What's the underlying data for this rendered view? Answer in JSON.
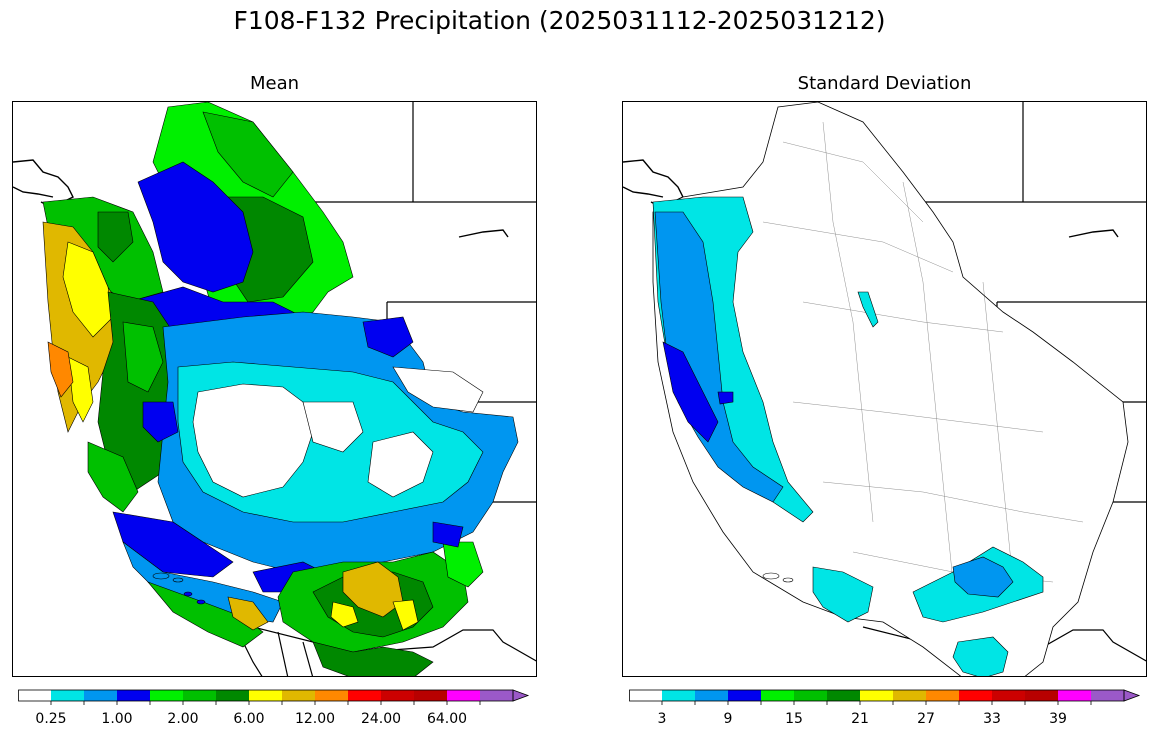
{
  "figure": {
    "title": "F108-F132 Precipitation (2025031112-2025031212)"
  },
  "panels": {
    "left": {
      "title": "Mean"
    },
    "right": {
      "title": "Standard Deviation"
    }
  },
  "colorbars": {
    "left": {
      "colors": [
        "#ffffff",
        "#00e5e5",
        "#0096f0",
        "#0000f0",
        "#00f000",
        "#00c000",
        "#008800",
        "#ffff00",
        "#e0b800",
        "#ff8800",
        "#ff0000",
        "#cc0000",
        "#b80000",
        "#ff00ff",
        "#9b59c8"
      ],
      "labels": [
        "0.25",
        "1.00",
        "2.00",
        "6.00",
        "12.00",
        "24.00",
        "64.00"
      ],
      "extend": "max"
    },
    "right": {
      "colors": [
        "#ffffff",
        "#00e5e5",
        "#0096f0",
        "#0000f0",
        "#00f000",
        "#00c000",
        "#008800",
        "#ffff00",
        "#e0b800",
        "#ff8800",
        "#ff0000",
        "#cc0000",
        "#b80000",
        "#ff00ff",
        "#9b59c8"
      ],
      "labels": [
        "3",
        "9",
        "15",
        "21",
        "27",
        "33",
        "39"
      ],
      "extend": "max"
    }
  },
  "legend_colors": {
    "white": "#ffffff",
    "cyan": "#00e5e5",
    "blue": "#0096f0",
    "dark_blue": "#0000f0",
    "green": "#00f000",
    "mid_green": "#00c000",
    "dark_green": "#008800",
    "yellow": "#ffff00",
    "gold": "#e0b800",
    "orange": "#ff8800"
  }
}
